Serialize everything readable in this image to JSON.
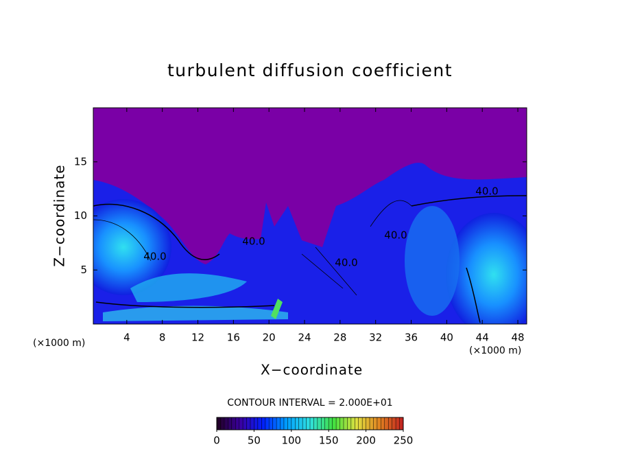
{
  "chart_data": {
    "type": "heatmap",
    "title": "turbulent diffusion coefficient",
    "xlabel": "X−coordinate",
    "ylabel": "Z−coordinate",
    "x_unit": "(×1000 m)",
    "y_unit": "(×1000 m)",
    "xlim": [
      0,
      49
    ],
    "ylim": [
      0,
      20
    ],
    "xticks": [
      4,
      8,
      12,
      16,
      20,
      24,
      28,
      32,
      36,
      40,
      44,
      48
    ],
    "yticks": [
      5,
      10,
      15
    ],
    "contour_interval_text": "CONTOUR INTERVAL = 2.000E+01",
    "contour_labels": [
      "40.0",
      "40.0",
      "40.0",
      "40.0",
      "40.0"
    ],
    "colorbar": {
      "lim": [
        0,
        250
      ],
      "ticks": [
        0,
        50,
        100,
        150,
        200,
        250
      ],
      "colors": [
        "#200020",
        "#3a00a0",
        "#0020ff",
        "#00a0ff",
        "#30e0e0",
        "#40e040",
        "#e0e040",
        "#e08020",
        "#c02020"
      ]
    }
  }
}
